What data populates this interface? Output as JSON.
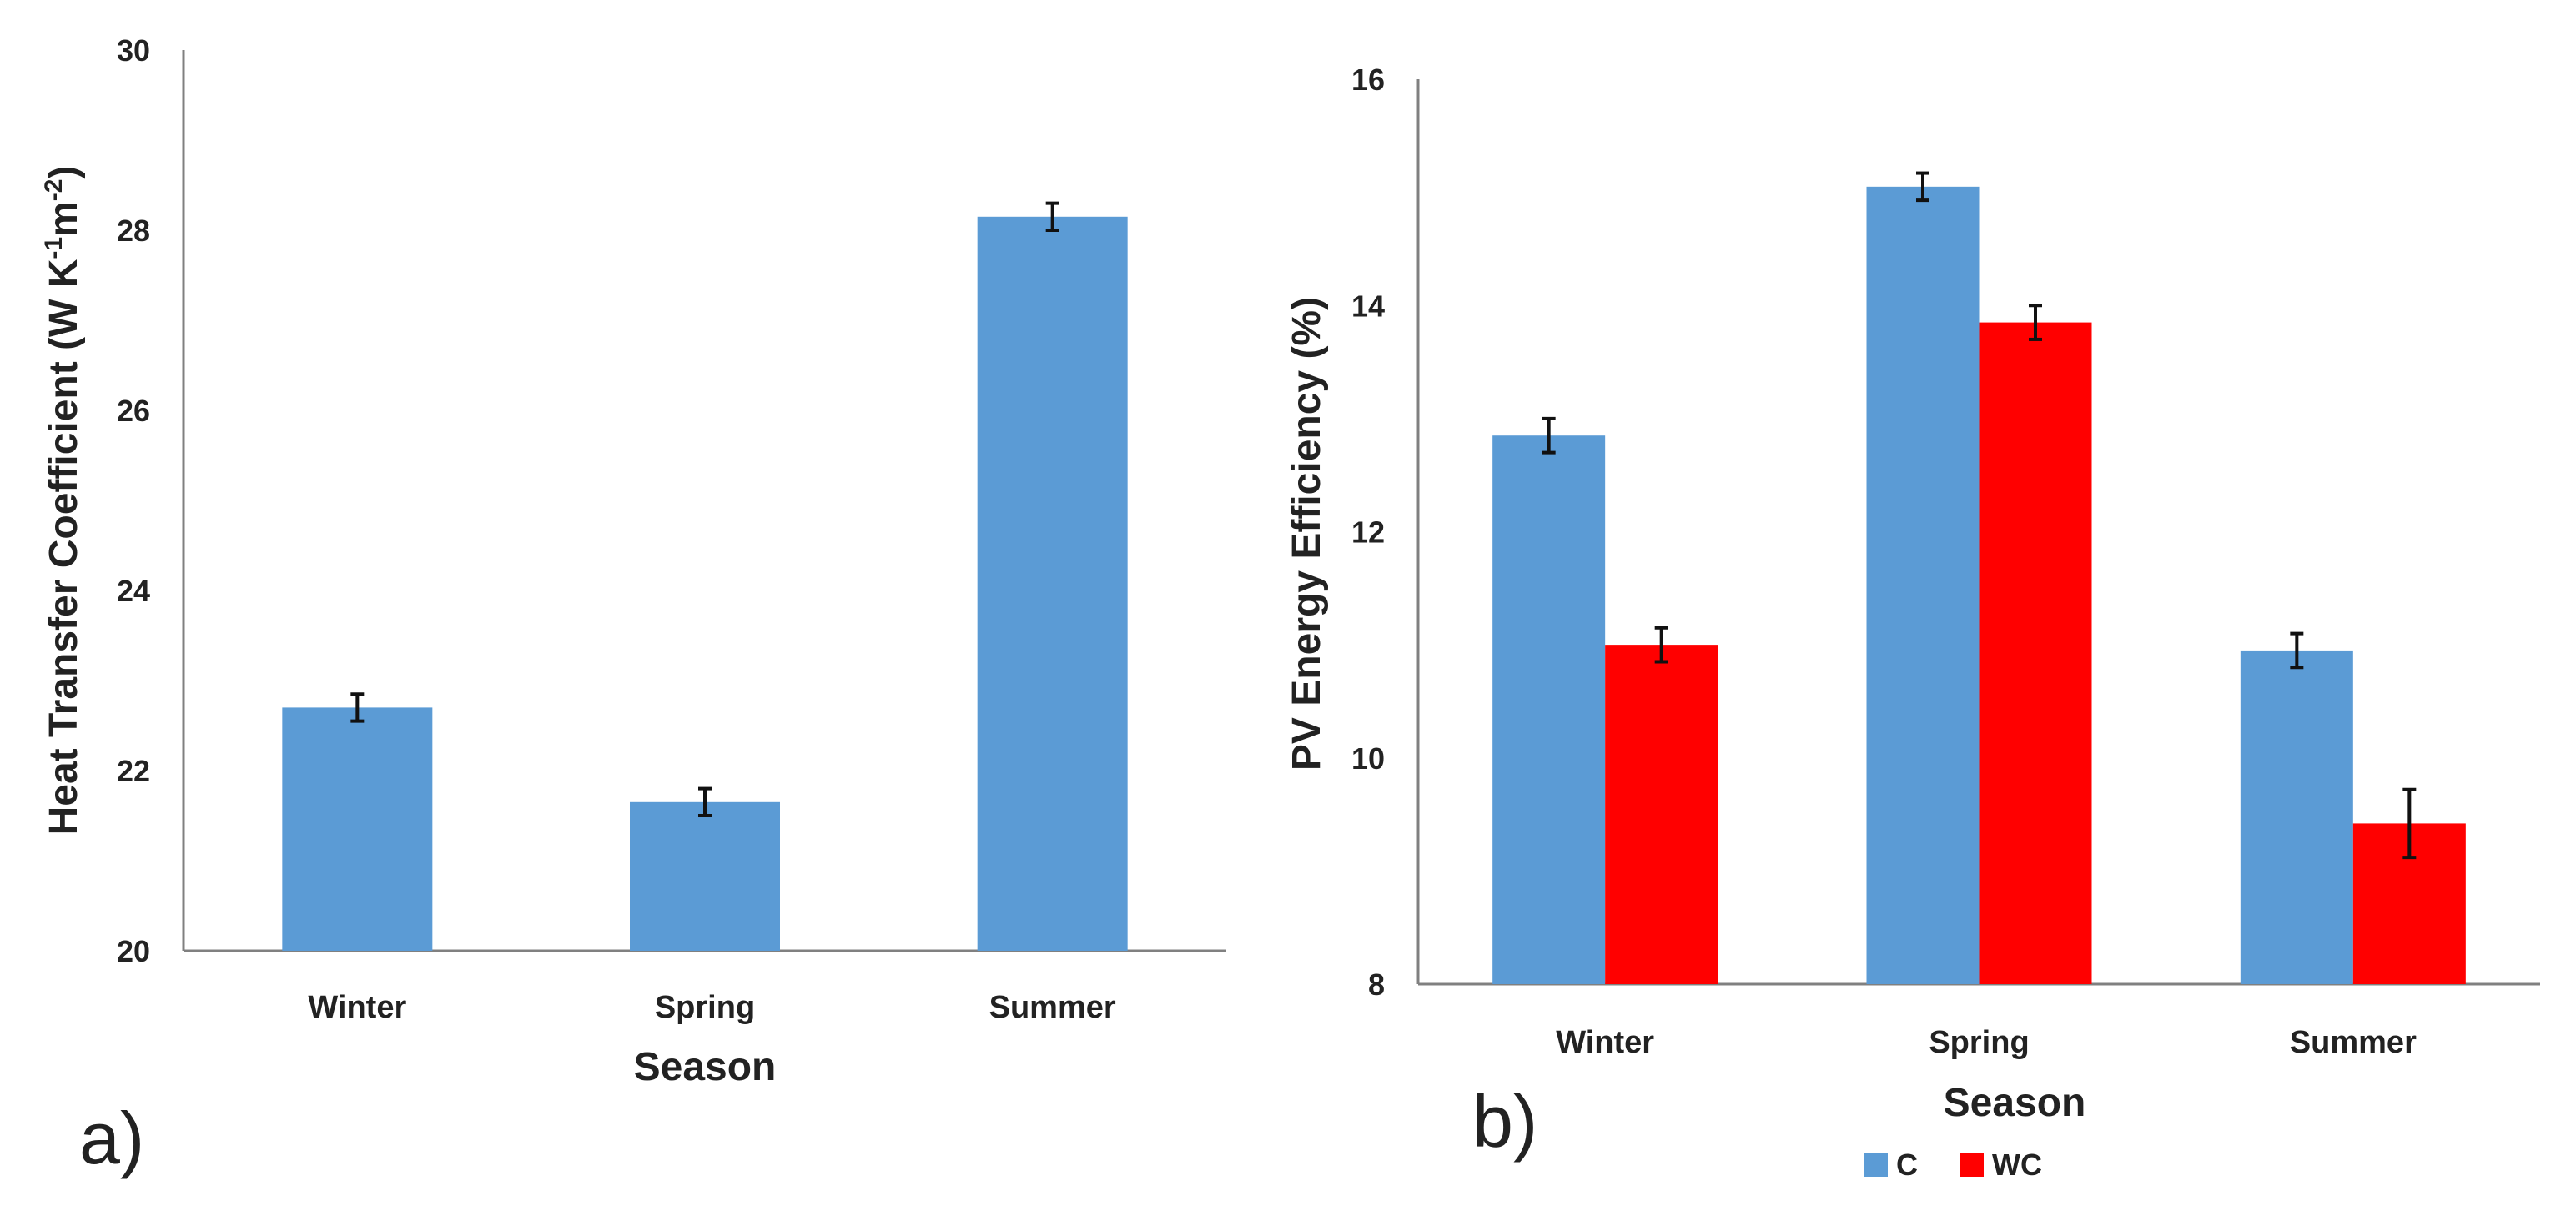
{
  "chart_data": [
    {
      "type": "bar",
      "panel_label": "a)",
      "title": "",
      "xlabel": "Season",
      "ylabel_main": "Heat Transfer Coefficient  (W K",
      "ylabel_sup1": "-1",
      "ylabel_mid": "m",
      "ylabel_sup2": "-2",
      "ylabel_end": ")",
      "ylim": [
        20,
        30
      ],
      "yticks": [
        "20",
        "22",
        "24",
        "26",
        "28",
        "30"
      ],
      "categories": [
        "Winter",
        "Spring",
        "Summer"
      ],
      "series": [
        {
          "name": "Heat Transfer Coefficient",
          "color": "#5B9BD5",
          "values": [
            22.7,
            21.65,
            28.15
          ],
          "errors": [
            0.15,
            0.15,
            0.15
          ]
        }
      ]
    },
    {
      "type": "bar",
      "panel_label": "b)",
      "title": "",
      "xlabel": "Season",
      "ylabel": "PV Energy Efficiency (%)",
      "ylim": [
        8,
        16
      ],
      "yticks": [
        "8",
        "10",
        "12",
        "14",
        "16"
      ],
      "categories": [
        "Winter",
        "Spring",
        "Summer"
      ],
      "series": [
        {
          "name": "C",
          "color": "#5B9BD5",
          "values": [
            12.85,
            15.05,
            10.95
          ],
          "errors": [
            0.15,
            0.12,
            0.15
          ]
        },
        {
          "name": "WC",
          "color": "#FF0000",
          "values": [
            11.0,
            13.85,
            9.42
          ],
          "errors": [
            0.15,
            0.15,
            0.3
          ]
        }
      ],
      "legend": {
        "position": "bottom-center",
        "items": [
          "C",
          "WC"
        ]
      }
    }
  ]
}
